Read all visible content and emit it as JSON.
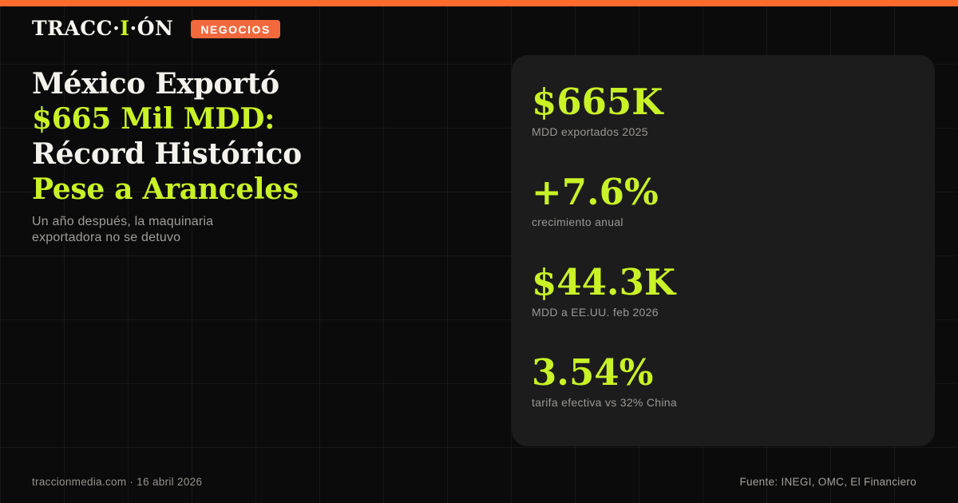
{
  "brand": {
    "logo_left": "TRACC·",
    "logo_accent": "I",
    "logo_right": "·ÓN",
    "badge": "NEGOCIOS"
  },
  "headline": {
    "lines": [
      {
        "text": "México Exportó",
        "accent": false
      },
      {
        "text": "$665 Mil MDD:",
        "accent": true
      },
      {
        "text": "Récord Histórico",
        "accent": false
      },
      {
        "text": "Pese a Aranceles",
        "accent": true
      }
    ]
  },
  "subtitle": "Un año después, la maquinaria exportadora no se detuvo",
  "stats": [
    {
      "value": "$665K",
      "label": "MDD exportados 2025"
    },
    {
      "value": "+7.6%",
      "label": "crecimiento anual"
    },
    {
      "value": "$44.3K",
      "label": "MDD a EE.UU. feb 2026"
    },
    {
      "value": "3.54%",
      "label": "tarifa efectiva vs 32% China"
    }
  ],
  "footer": {
    "left": "traccionmedia.com · 16 abril 2026",
    "right": "Fuente: INEGI, OMC, El Financiero"
  },
  "colors": {
    "accent_orange": "#FF6B2B",
    "badge_orange": "#F2693E",
    "accent_lime": "#C9F227",
    "background": "#0B0B0B",
    "panel": "#1C1C1C"
  }
}
